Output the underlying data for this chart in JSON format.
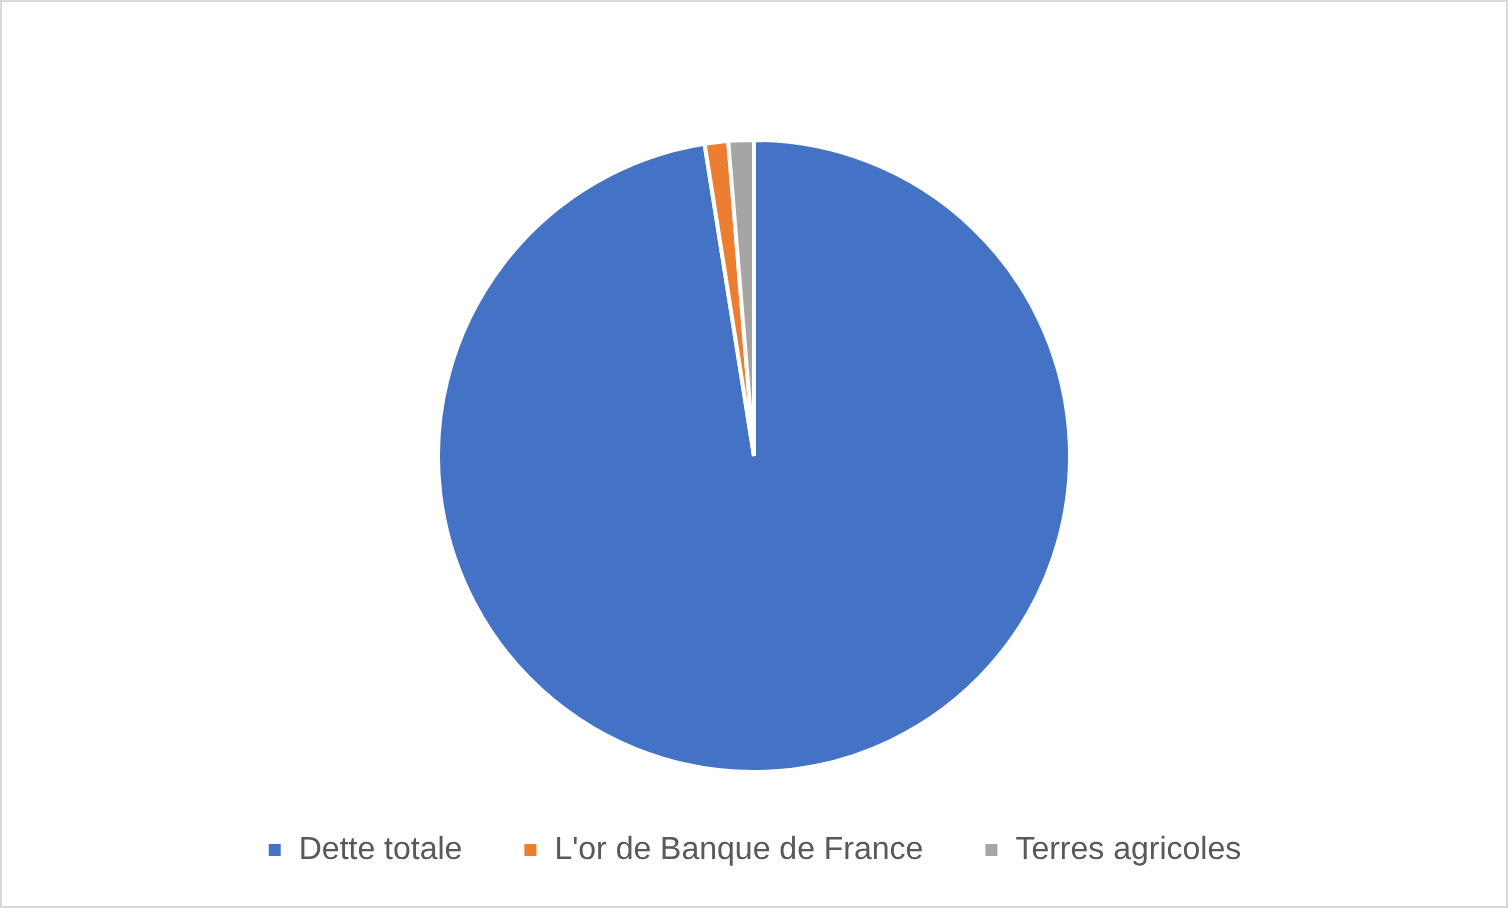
{
  "chart_data": {
    "type": "pie",
    "categories": [
      "Dette totale",
      "L'or de Banque de France",
      "Terres agricoles"
    ],
    "values": [
      97.5,
      1.2,
      1.3
    ],
    "colors": [
      "#4472c4",
      "#ed7d31",
      "#a5a5a5"
    ],
    "legend": "bottom"
  }
}
